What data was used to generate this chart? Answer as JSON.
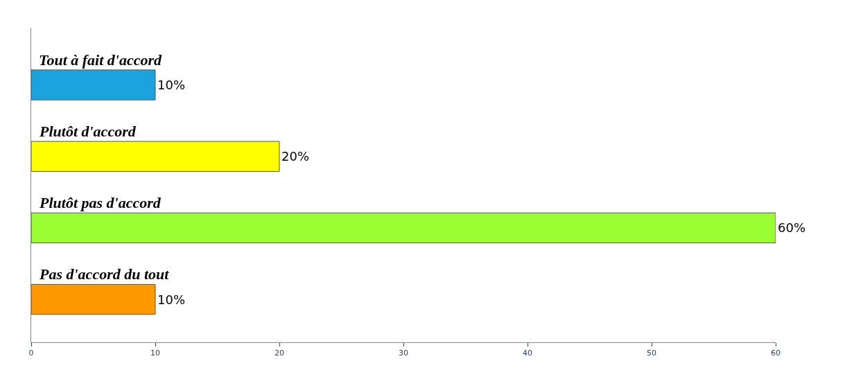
{
  "chart_data": {
    "type": "bar",
    "orientation": "horizontal",
    "categories": [
      "Tout à fait d'accord",
      "Plutôt d'accord",
      "Plutôt pas d'accord",
      "Pas d'accord du tout"
    ],
    "values": [
      10,
      20,
      60,
      10
    ],
    "colors": [
      "#1aa3dc",
      "#ffff00",
      "#99ff33",
      "#ff9900"
    ],
    "value_labels": [
      "10%",
      "20%",
      "60%",
      "10%"
    ],
    "xlim": [
      0,
      60
    ],
    "xticks": [
      0,
      10,
      20,
      30,
      40,
      50,
      60
    ],
    "tick_labels": "x",
    "legend": false
  }
}
